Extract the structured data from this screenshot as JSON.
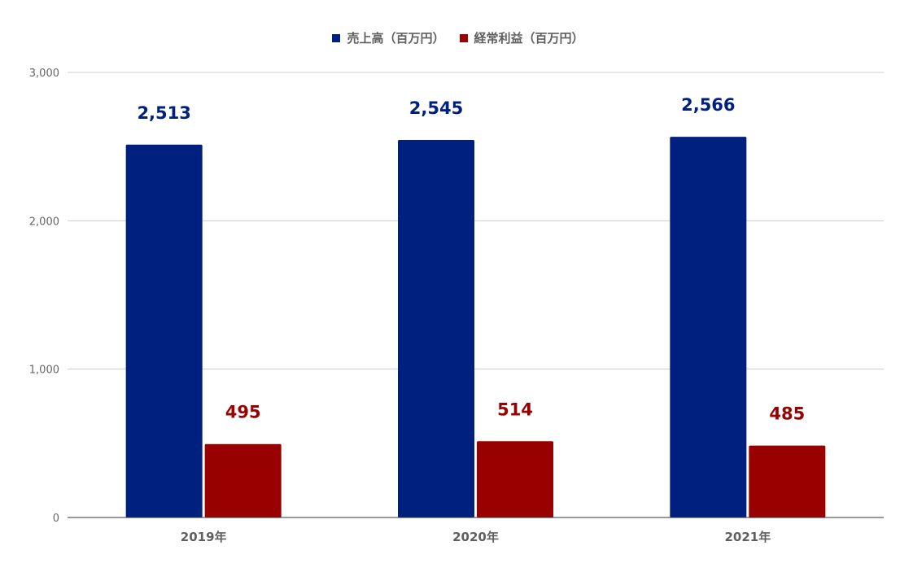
{
  "chart_data": {
    "type": "bar",
    "categories": [
      "2019年",
      "2020年",
      "2021年"
    ],
    "series": [
      {
        "name": "売上高（百万円）",
        "color": "#002080",
        "values": [
          2513,
          2545,
          2566
        ],
        "labels": [
          "2,513",
          "2,545",
          "2,566"
        ]
      },
      {
        "name": "経常利益（百万円）",
        "color": "#990000",
        "values": [
          495,
          514,
          485
        ],
        "labels": [
          "495",
          "514",
          "485"
        ]
      }
    ],
    "ylim": [
      0,
      3000
    ],
    "yticks": [
      0,
      1000,
      2000,
      3000
    ],
    "ytick_labels": [
      "0",
      "1,000",
      "2,000",
      "3,000"
    ],
    "grid": true,
    "legend_position": "top-center",
    "title": "",
    "xlabel": "",
    "ylabel": "",
    "colors": {
      "grid": "#cccccc",
      "axis": "#333333",
      "tick_text": "#666666",
      "category_text": "#5f5f5f"
    }
  }
}
